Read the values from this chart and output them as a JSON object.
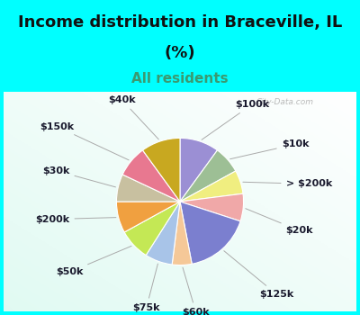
{
  "title_line1": "Income distribution in Braceville, IL",
  "title_line2": "(%)",
  "subtitle": "All residents",
  "bg_cyan": "#00FFFF",
  "bg_pie": "#e8f5ee",
  "labels": [
    "$100k",
    "$10k",
    "> $200k",
    "$20k",
    "$125k",
    "$60k",
    "$75k",
    "$50k",
    "$200k",
    "$30k",
    "$150k",
    "$40k"
  ],
  "sizes": [
    10,
    7,
    6,
    7,
    17,
    5,
    7,
    8,
    8,
    7,
    8,
    10
  ],
  "colors": [
    "#9b8fd4",
    "#9dbf95",
    "#f0ee80",
    "#f0a8a8",
    "#7b7fcf",
    "#f5c898",
    "#a8c4e8",
    "#c4e855",
    "#f0a040",
    "#c8c0a0",
    "#e87890",
    "#c8a820"
  ],
  "title_fontsize": 13,
  "subtitle_fontsize": 11,
  "label_fontsize": 8,
  "watermark": "City-Data.com"
}
